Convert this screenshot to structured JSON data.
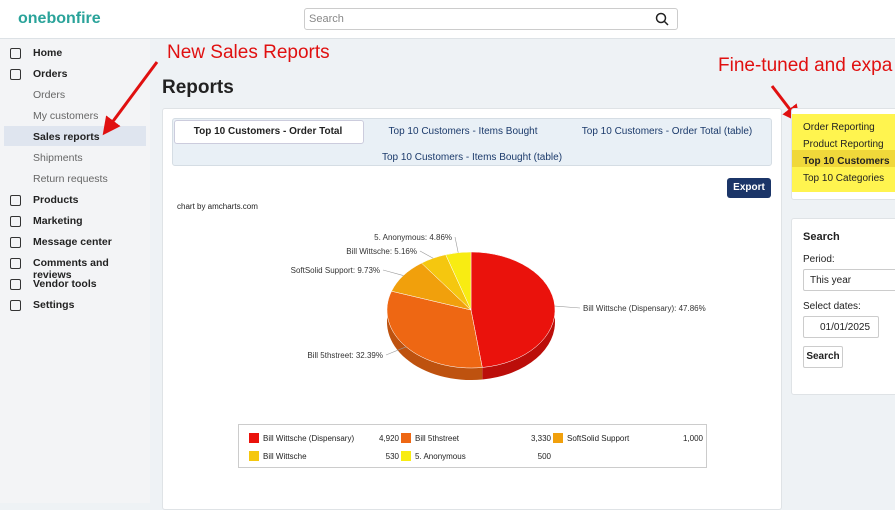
{
  "header": {
    "logo": "onebonfire",
    "search_placeholder": "Search"
  },
  "sidebar": {
    "items": [
      {
        "label": "Home"
      },
      {
        "label": "Orders",
        "children": [
          "Orders",
          "My customers",
          "Sales reports",
          "Shipments",
          "Return requests"
        ]
      },
      {
        "label": "Products"
      },
      {
        "label": "Marketing"
      },
      {
        "label": "Message center"
      },
      {
        "label": "Comments and reviews"
      },
      {
        "label": "Vendor tools"
      },
      {
        "label": "Settings"
      }
    ],
    "active": "Sales reports"
  },
  "annotations": {
    "left": "New Sales Reports",
    "right": "Fine-tuned and expa"
  },
  "page_title": "Reports",
  "tabs": [
    "Top 10 Customers - Order Total",
    "Top 10 Customers - Items Bought",
    "Top 10 Customers - Order Total (table)",
    "Top 10 Customers - Items Bought (table)"
  ],
  "export_button": "Export",
  "chart_credit": "chart by amcharts.com",
  "chart_data": {
    "type": "pie",
    "categories": [
      "Bill Wittsche (Dispensary)",
      "Bill 5thstreet",
      "SoftSolid Support",
      "Bill Wittsche",
      "5. Anonymous"
    ],
    "values": [
      4920,
      3330,
      1000,
      530,
      500
    ],
    "value_labels": [
      "4,920",
      "3,330",
      "1,000",
      "530",
      "500"
    ],
    "slice_labels": [
      "Bill Wittsche (Dispensary): 47.86%",
      "Bill 5thstreet: 32.39%",
      "SoftSolid Support: 9.73%",
      "Bill Wittsche: 5.16%",
      "5. Anonymous: 4.86%"
    ],
    "colors": [
      "#ea120c",
      "#ee6713",
      "#f1a00c",
      "#f5c70f",
      "#f8ec12"
    ]
  },
  "report_menu": {
    "items": [
      "Order Reporting",
      "Product Reporting",
      "Top 10 Customers",
      "Top 10 Categories"
    ],
    "active": "Top 10 Customers"
  },
  "search_panel": {
    "title": "Search",
    "period_label": "Period:",
    "period_value": "This year",
    "dates_label": "Select dates:",
    "date_from": "01/01/2025",
    "button": "Search"
  }
}
